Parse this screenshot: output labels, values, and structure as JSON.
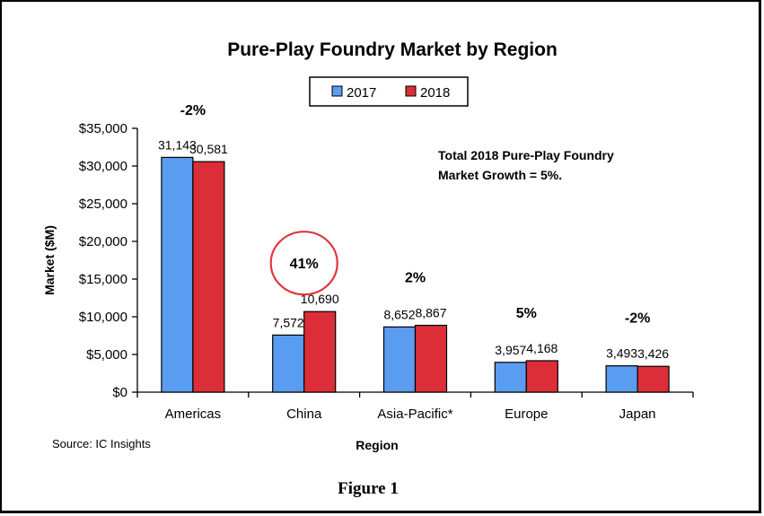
{
  "chart_data": {
    "type": "bar",
    "title": "Pure-Play Foundry Market by Region",
    "xlabel": "Region",
    "ylabel": "Market ($M)",
    "ylim": [
      0,
      35000
    ],
    "yticks": [
      0,
      5000,
      10000,
      15000,
      20000,
      25000,
      30000,
      35000
    ],
    "ytick_labels": [
      "$0",
      "$5,000",
      "$10,000",
      "$15,000",
      "$20,000",
      "$25,000",
      "$30,000",
      "$35,000"
    ],
    "categories": [
      "Americas",
      "China",
      "Asia-Pacific*",
      "Europe",
      "Japan"
    ],
    "series": [
      {
        "name": "2017",
        "color": "#5a9cf0",
        "values": [
          31143,
          7572,
          8652,
          3957,
          3493
        ],
        "labels": [
          "31,143",
          "7,572",
          "8,652",
          "3,957",
          "3,493"
        ]
      },
      {
        "name": "2018",
        "color": "#dc2e38",
        "values": [
          30581,
          10690,
          8867,
          4168,
          3426
        ],
        "labels": [
          "30,581",
          "10,690",
          "8,867",
          "4,168",
          "3,426"
        ]
      }
    ],
    "growth_labels": [
      "-2%",
      "41%",
      "2%",
      "5%",
      "-2%"
    ],
    "highlight_circle_color": "#e2373f",
    "annotation_lines": [
      "Total 2018 Pure-Play Foundry",
      "Market Growth = 5%."
    ],
    "legend_position": "top",
    "grid": false
  },
  "source": "Source: IC Insights",
  "figure_caption": "Figure 1"
}
